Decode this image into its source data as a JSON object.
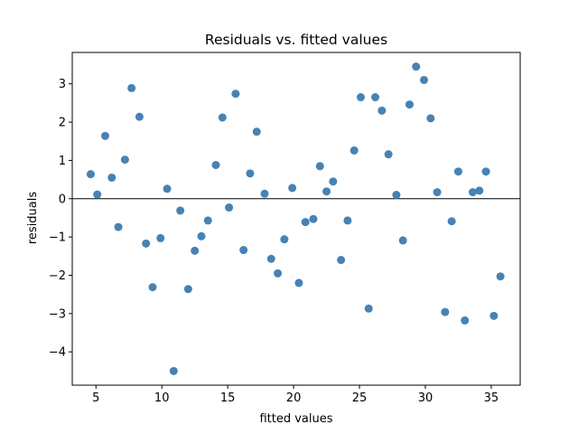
{
  "chart_data": {
    "type": "scatter",
    "title": "Residuals vs. fitted values",
    "xlabel": "fitted values",
    "ylabel": "residuals",
    "xlim": [
      3.2,
      37.2
    ],
    "ylim": [
      -4.87,
      3.82
    ],
    "xticks": [
      5,
      10,
      15,
      20,
      25,
      30,
      35
    ],
    "yticks": [
      -4,
      -3,
      -2,
      -1,
      0,
      1,
      2,
      3
    ],
    "xtick_labels": [
      "5",
      "10",
      "15",
      "20",
      "25",
      "30",
      "35"
    ],
    "ytick_labels": [
      "−4",
      "−3",
      "−2",
      "−1",
      "0",
      "1",
      "2",
      "3"
    ],
    "reference_line_y": 0,
    "marker_color": "#4682b4",
    "line_color": "#000000",
    "grid": false,
    "x": [
      4.6,
      5.1,
      5.7,
      6.2,
      6.7,
      7.2,
      7.7,
      8.3,
      8.8,
      9.3,
      9.9,
      10.4,
      10.9,
      11.4,
      12.0,
      12.5,
      13.0,
      13.5,
      14.1,
      14.6,
      15.1,
      15.6,
      16.2,
      16.7,
      17.2,
      17.8,
      18.3,
      18.8,
      19.3,
      19.9,
      20.4,
      20.9,
      21.5,
      22.0,
      22.5,
      23.0,
      23.6,
      24.1,
      24.6,
      25.1,
      25.7,
      26.2,
      26.7,
      27.2,
      27.8,
      28.3,
      28.8,
      29.3,
      29.9,
      30.4,
      30.9,
      31.5,
      32.0,
      32.5,
      33.0,
      33.6,
      34.1,
      34.6,
      35.2,
      35.7
    ],
    "y": [
      0.64,
      0.11,
      1.64,
      0.55,
      -0.74,
      1.02,
      2.89,
      2.14,
      -1.17,
      -2.31,
      -1.03,
      0.26,
      -4.5,
      -0.31,
      -2.36,
      -1.36,
      -0.98,
      -0.57,
      0.88,
      2.12,
      -0.23,
      2.74,
      -1.34,
      0.66,
      1.75,
      0.13,
      -1.57,
      -1.95,
      -1.06,
      0.28,
      -2.2,
      -0.61,
      -0.53,
      0.85,
      0.19,
      0.45,
      -1.6,
      -0.57,
      1.26,
      2.65,
      -2.87,
      2.65,
      2.3,
      1.16,
      0.1,
      -1.09,
      2.46,
      3.45,
      3.1,
      2.1,
      0.17,
      -2.96,
      -0.59,
      0.71,
      -3.18,
      0.17,
      0.21,
      0.71,
      -3.06,
      -2.03
    ]
  }
}
